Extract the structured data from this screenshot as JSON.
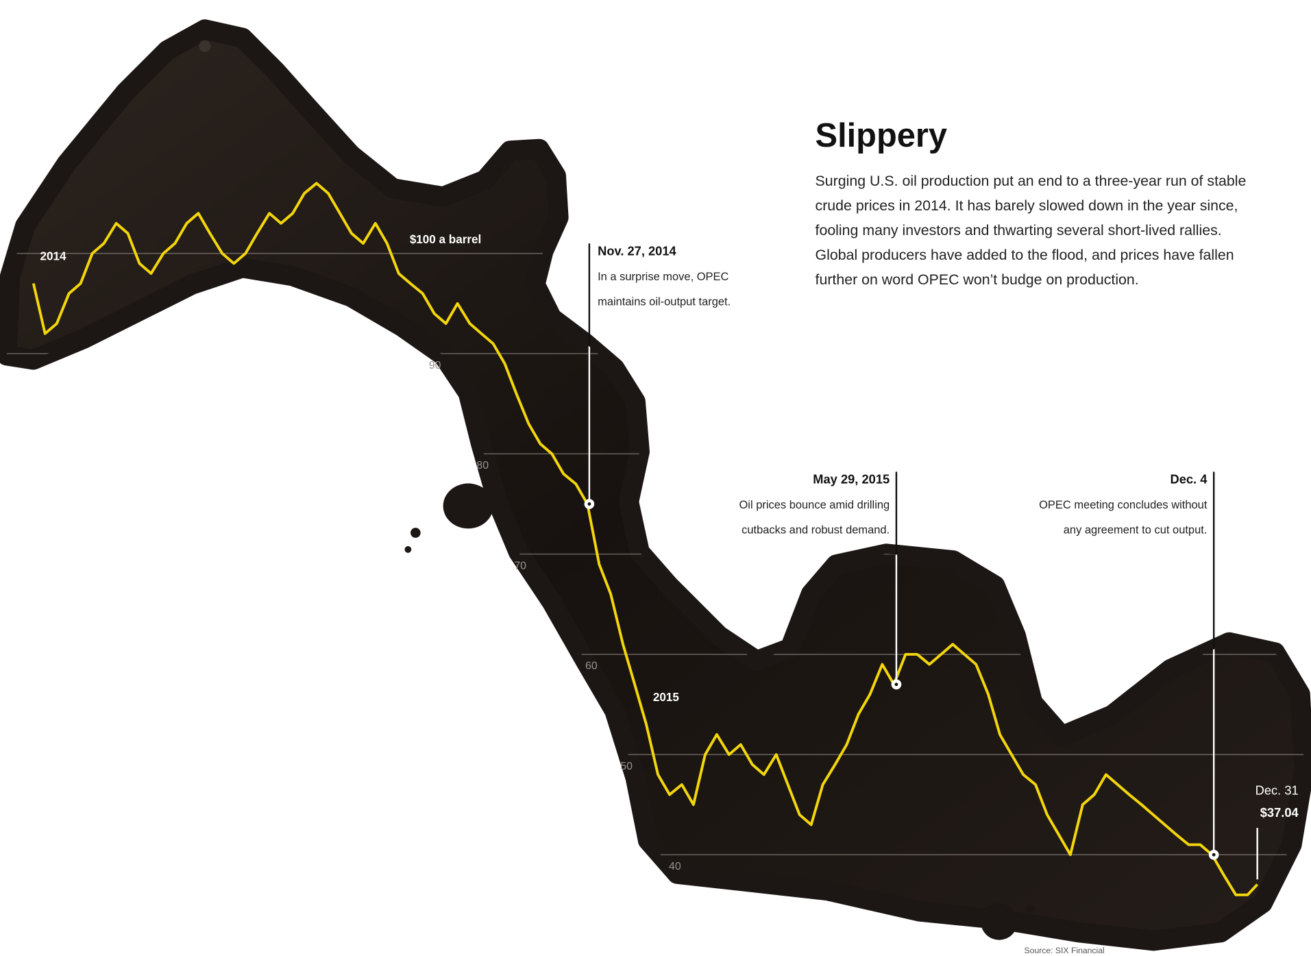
{
  "chart_data": {
    "type": "line",
    "title": "Slippery",
    "subtitle": [
      "Surging U.S. oil production put an end to a three-year run of stable",
      "crude prices in 2014. It has barely slowed down in the year since,",
      "fooling many investors and thwarting several short-lived rallies.",
      "Global producers have added to the flood, and prices have fallen",
      "further on word OPEC won’t budge on production."
    ],
    "source": "Source: SIX Financial",
    "x": [
      2014,
      2014.019,
      2014.038,
      2014.058,
      2014.077,
      2014.096,
      2014.115,
      2014.135,
      2014.154,
      2014.173,
      2014.192,
      2014.212,
      2014.231,
      2014.25,
      2014.269,
      2014.288,
      2014.308,
      2014.327,
      2014.346,
      2014.365,
      2014.385,
      2014.404,
      2014.423,
      2014.442,
      2014.462,
      2014.481,
      2014.5,
      2014.519,
      2014.538,
      2014.558,
      2014.577,
      2014.596,
      2014.615,
      2014.635,
      2014.654,
      2014.673,
      2014.692,
      2014.712,
      2014.731,
      2014.75,
      2014.769,
      2014.788,
      2014.808,
      2014.827,
      2014.846,
      2014.865,
      2014.885,
      2014.904,
      2014.923,
      2014.942,
      2014.962,
      2014.981,
      2015,
      2015.019,
      2015.038,
      2015.058,
      2015.077,
      2015.096,
      2015.115,
      2015.135,
      2015.154,
      2015.173,
      2015.192,
      2015.212,
      2015.231,
      2015.25,
      2015.269,
      2015.288,
      2015.308,
      2015.327,
      2015.346,
      2015.365,
      2015.385,
      2015.404,
      2015.423,
      2015.442,
      2015.462,
      2015.481,
      2015.5,
      2015.519,
      2015.538,
      2015.558,
      2015.577,
      2015.596,
      2015.615,
      2015.635,
      2015.654,
      2015.673,
      2015.692,
      2015.712,
      2015.731,
      2015.75,
      2015.769,
      2015.788,
      2015.808,
      2015.827,
      2015.846,
      2015.865,
      2015.885,
      2015.904,
      2015.923,
      2015.942,
      2015.962,
      2015.981,
      2015.997
    ],
    "values": [
      97,
      92,
      93,
      96,
      97,
      100,
      101,
      103,
      102,
      99,
      98,
      100,
      101,
      103,
      104,
      102,
      100,
      99,
      100,
      102,
      104,
      103,
      104,
      106,
      107,
      106,
      104,
      102,
      101,
      103,
      101,
      98,
      97,
      96,
      94,
      93,
      95,
      93,
      92,
      91,
      89,
      86,
      83,
      81,
      80,
      78,
      77,
      75,
      69,
      66,
      61,
      57,
      53,
      48,
      46,
      47,
      45,
      50,
      52,
      50,
      51,
      49,
      48,
      50,
      47,
      44,
      43,
      47,
      49,
      51,
      54,
      56,
      59,
      57,
      60,
      60,
      59,
      60,
      61,
      60,
      59,
      56,
      52,
      50,
      48,
      47,
      44,
      42,
      40,
      45,
      46,
      48,
      47,
      46,
      45,
      44,
      43,
      42,
      41,
      41,
      40,
      38,
      36,
      36,
      37.04
    ],
    "color": "#f4d60c",
    "xlim": [
      2014,
      2016
    ],
    "xticks": [
      2014,
      2015
    ],
    "ylim": [
      30,
      110
    ],
    "yticks": [
      40,
      50,
      60,
      70,
      80,
      90,
      {
        "value": 100,
        "label": "$100 a barrel"
      }
    ],
    "grid": true,
    "annotations": [
      {
        "date": "Nov. 27, 2014",
        "text": [
          "In a surprise move, OPEC",
          "maintains oil-output target."
        ],
        "x": 2014.907
      },
      {
        "date": "May 29, 2015",
        "text": [
          "Oil prices bounce amid drilling",
          "cutbacks and robust demand."
        ],
        "x": 2015.408
      },
      {
        "date": "Dec. 4",
        "text": [
          "OPEC meeting concludes without",
          "any agreement to cut output."
        ],
        "x": 2015.926
      }
    ],
    "end_label": {
      "date": "Dec. 31",
      "label": "$37.04"
    }
  }
}
